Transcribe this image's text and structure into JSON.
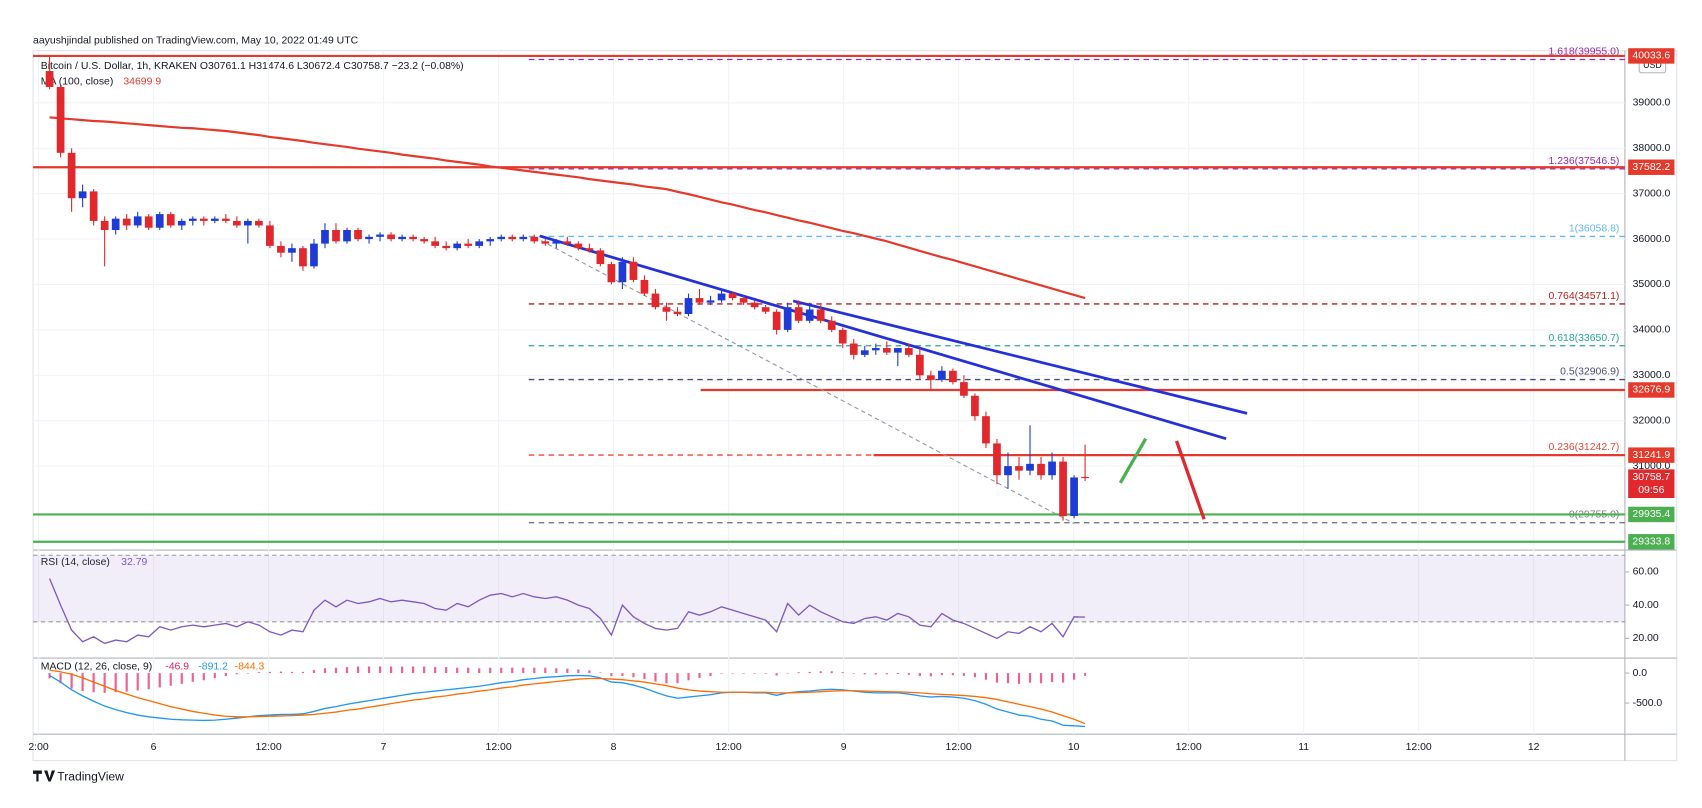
{
  "chart_data": {
    "type": "candlestick",
    "title": "aayushjindal published on TradingView.com, May 10, 2022 01:49 UTC",
    "symbol_line": "Bitcoin / U.S. Dollar, 1h, KRAKEN O30761.1 H31474.6 L30672.4 C30758.7 −23.2 (−0.08%)",
    "currency": "USD",
    "up_color": "#1e3bd6",
    "down_color": "#e0282d",
    "ylim": [
      29200,
      40100
    ],
    "yticks": [
      {
        "value": 31000,
        "label": "31000.0"
      },
      {
        "value": 32000,
        "label": "32000.0"
      },
      {
        "value": 33000,
        "label": "33000.0"
      },
      {
        "value": 34000,
        "label": "34000.0"
      },
      {
        "value": 35000,
        "label": "35000.0"
      },
      {
        "value": 36000,
        "label": "36000.0"
      },
      {
        "value": 37000,
        "label": "37000.0"
      },
      {
        "value": 38000,
        "label": "38000.0"
      },
      {
        "value": 39000,
        "label": "39000.0"
      }
    ],
    "grid": true,
    "time_labels": [
      "2:00",
      "6",
      "12:00",
      "7",
      "12:00",
      "8",
      "12:00",
      "9",
      "12:00",
      "10",
      "12:00",
      "11",
      "12:00",
      "12"
    ],
    "candles": [
      [
        39700,
        40050,
        39300,
        39350
      ],
      [
        39350,
        39400,
        37800,
        37900
      ],
      [
        37900,
        38000,
        36600,
        36900
      ],
      [
        36900,
        37200,
        36700,
        37050
      ],
      [
        37050,
        37100,
        36300,
        36400
      ],
      [
        36400,
        36500,
        35400,
        36200
      ],
      [
        36200,
        36500,
        36100,
        36450
      ],
      [
        36450,
        36550,
        36200,
        36300
      ],
      [
        36300,
        36600,
        36250,
        36500
      ],
      [
        36500,
        36550,
        36200,
        36250
      ],
      [
        36250,
        36600,
        36200,
        36550
      ],
      [
        36550,
        36600,
        36250,
        36300
      ],
      [
        36300,
        36450,
        36200,
        36400
      ],
      [
        36400,
        36500,
        36300,
        36450
      ],
      [
        36450,
        36500,
        36300,
        36400
      ],
      [
        36400,
        36500,
        36350,
        36450
      ],
      [
        36450,
        36550,
        36350,
        36400
      ],
      [
        36400,
        36500,
        36250,
        36300
      ],
      [
        36300,
        36450,
        35900,
        36400
      ],
      [
        36400,
        36450,
        36250,
        36300
      ],
      [
        36300,
        36400,
        35800,
        35850
      ],
      [
        35850,
        35950,
        35600,
        35700
      ],
      [
        35700,
        35900,
        35500,
        35800
      ],
      [
        35800,
        35850,
        35300,
        35400
      ],
      [
        35400,
        36000,
        35350,
        35900
      ],
      [
        35900,
        36350,
        35800,
        36200
      ],
      [
        36200,
        36350,
        35900,
        35950
      ],
      [
        35950,
        36250,
        35900,
        36200
      ],
      [
        36200,
        36250,
        35950,
        36000
      ],
      [
        36000,
        36100,
        35900,
        36050
      ],
      [
        36050,
        36150,
        35950,
        36100
      ],
      [
        36100,
        36150,
        35950,
        36000
      ],
      [
        36000,
        36100,
        35950,
        36050
      ],
      [
        36050,
        36100,
        35950,
        36000
      ],
      [
        36000,
        36050,
        35900,
        35950
      ],
      [
        35950,
        36050,
        35800,
        35850
      ],
      [
        35850,
        35950,
        35750,
        35800
      ],
      [
        35800,
        35950,
        35750,
        35900
      ],
      [
        35900,
        36000,
        35800,
        35850
      ],
      [
        35850,
        36000,
        35800,
        35950
      ],
      [
        35950,
        36050,
        35850,
        36000
      ],
      [
        36000,
        36100,
        35950,
        36050
      ],
      [
        36050,
        36100,
        35950,
        36000
      ],
      [
        36000,
        36100,
        35950,
        36050
      ],
      [
        36050,
        36100,
        35900,
        35950
      ],
      [
        35950,
        36000,
        35850,
        35900
      ],
      [
        35900,
        36000,
        35800,
        35950
      ],
      [
        35950,
        36050,
        35850,
        35900
      ],
      [
        35900,
        35950,
        35750,
        35800
      ],
      [
        35800,
        35900,
        35700,
        35750
      ],
      [
        35750,
        35800,
        35400,
        35450
      ],
      [
        35450,
        35500,
        35000,
        35050
      ],
      [
        35050,
        35600,
        34900,
        35500
      ],
      [
        35500,
        35600,
        35050,
        35100
      ],
      [
        35100,
        35200,
        34750,
        34800
      ],
      [
        34800,
        34900,
        34450,
        34500
      ],
      [
        34500,
        34600,
        34200,
        34400
      ],
      [
        34400,
        34500,
        34300,
        34350
      ],
      [
        34350,
        34800,
        34300,
        34700
      ],
      [
        34700,
        34900,
        34550,
        34600
      ],
      [
        34600,
        34750,
        34550,
        34650
      ],
      [
        34650,
        34900,
        34600,
        34800
      ],
      [
        34800,
        34850,
        34650,
        34700
      ],
      [
        34700,
        34750,
        34550,
        34600
      ],
      [
        34600,
        34650,
        34450,
        34500
      ],
      [
        34500,
        34550,
        34350,
        34400
      ],
      [
        34400,
        34450,
        33900,
        34000
      ],
      [
        34000,
        34600,
        33950,
        34500
      ],
      [
        34500,
        34650,
        34150,
        34200
      ],
      [
        34200,
        34600,
        34150,
        34450
      ],
      [
        34450,
        34550,
        34150,
        34200
      ],
      [
        34200,
        34300,
        33950,
        34000
      ],
      [
        34000,
        34050,
        33600,
        33700
      ],
      [
        33700,
        33800,
        33350,
        33450
      ],
      [
        33450,
        33650,
        33400,
        33550
      ],
      [
        33550,
        33700,
        33450,
        33600
      ],
      [
        33600,
        33750,
        33450,
        33500
      ],
      [
        33500,
        33600,
        33200,
        33600
      ],
      [
        33600,
        33700,
        33400,
        33450
      ],
      [
        33450,
        33600,
        32900,
        33000
      ],
      [
        33000,
        33100,
        32700,
        32900
      ],
      [
        32900,
        33200,
        32850,
        33100
      ],
      [
        33100,
        33150,
        32800,
        32850
      ],
      [
        32850,
        33000,
        32500,
        32550
      ],
      [
        32550,
        32600,
        32000,
        32100
      ],
      [
        32100,
        32200,
        31400,
        31500
      ],
      [
        31500,
        31600,
        30600,
        30800
      ],
      [
        30800,
        31300,
        30500,
        31000
      ],
      [
        31000,
        31200,
        30700,
        30900
      ],
      [
        30900,
        31900,
        30800,
        31050
      ],
      [
        31050,
        31200,
        30700,
        30800
      ],
      [
        30800,
        31300,
        30700,
        31100
      ],
      [
        31100,
        31200,
        29800,
        29900
      ],
      [
        29900,
        30800,
        29850,
        30750
      ],
      [
        30761.1,
        31474.6,
        30672.4,
        30758.7
      ]
    ],
    "countdown": "09:56",
    "ma": {
      "name": "MA (100, close)",
      "color": "#e5392b",
      "values": [
        38680,
        38660,
        38640,
        38620,
        38600,
        38590,
        38570,
        38550,
        38530,
        38510,
        38490,
        38470,
        38450,
        38440,
        38420,
        38400,
        38380,
        38350,
        38320,
        38290,
        38250,
        38220,
        38190,
        38160,
        38120,
        38090,
        38060,
        38030,
        37990,
        37960,
        37930,
        37900,
        37860,
        37830,
        37800,
        37770,
        37730,
        37700,
        37670,
        37640,
        37600,
        37570,
        37540,
        37510,
        37480,
        37450,
        37420,
        37390,
        37360,
        37320,
        37290,
        37260,
        37230,
        37200,
        37160,
        37130,
        37100,
        37040,
        36990,
        36930,
        36870,
        36810,
        36760,
        36700,
        36640,
        36590,
        36530,
        36470,
        36410,
        36360,
        36300,
        36240,
        36180,
        36130,
        36070,
        36010,
        35950,
        35880,
        35810,
        35740,
        35670,
        35600,
        35540,
        35470,
        35400,
        35330,
        35260,
        35190,
        35120,
        35050,
        34980,
        34910,
        34840,
        34770,
        34699.9
      ]
    },
    "hlines": [
      {
        "value": 40033.6,
        "color": "#e5392b"
      },
      {
        "value": 37582.2,
        "color": "#e5392b"
      },
      {
        "value": 32676.9,
        "color": "#e5392b"
      },
      {
        "value": 31241.9,
        "color": "#e5392b"
      },
      {
        "value": 29935.4,
        "color": "#4caf50"
      },
      {
        "value": 29333.8,
        "color": "#4caf50"
      }
    ],
    "fib_levels": [
      {
        "label": "1.618(39955.0)",
        "value": 39955,
        "color": "#9c27b0"
      },
      {
        "label": "1.236(37546.5)",
        "value": 37546.5,
        "color": "#9c27b0"
      },
      {
        "label": "1(36058.8)",
        "value": 36058.8,
        "color": "#64b5f6"
      },
      {
        "label": "0.764(34571.1)",
        "value": 34571.1,
        "color": "#b71c1c"
      },
      {
        "label": "0.618(33650.7)",
        "value": 33650.7,
        "color": "#26a69a"
      },
      {
        "label": "0.5(32906.9)",
        "value": 32906.9,
        "color": "#4a4a7a"
      },
      {
        "label": "0.236(31242.7)",
        "value": 31242.7,
        "color": "#f44336"
      },
      {
        "label": "0(29755.0)",
        "value": 29755,
        "color": "#787b86"
      }
    ],
    "rsi": {
      "name": "RSI (14, close)",
      "color": "#7e57c2",
      "ylim": [
        9.5,
        71.8
      ],
      "band": [
        30,
        70
      ],
      "yticks": [
        {
          "value": 20,
          "label": "20.00"
        },
        {
          "value": 40,
          "label": "40.00"
        },
        {
          "value": 60,
          "label": "60.00"
        }
      ],
      "values": [
        56,
        40,
        25,
        18,
        21,
        17,
        19,
        18,
        22,
        21,
        27,
        25,
        27,
        28,
        27,
        28,
        29,
        27,
        30,
        28,
        24,
        22,
        25,
        24,
        37,
        43,
        39,
        43,
        41,
        42,
        44,
        42,
        43,
        42,
        41,
        38,
        37,
        41,
        39,
        43,
        46,
        47,
        45,
        47,
        45,
        44,
        45,
        43,
        40,
        38,
        32,
        22,
        40,
        33,
        29,
        26,
        25,
        26,
        36,
        34,
        36,
        39,
        37,
        35,
        33,
        31,
        24,
        41,
        34,
        40,
        36,
        33,
        30,
        29,
        32,
        33,
        31,
        35,
        33,
        28,
        27,
        35,
        31,
        29,
        26,
        23,
        20,
        24,
        23,
        27,
        24,
        29,
        21,
        33,
        32.79
      ]
    },
    "macd": {
      "name": "MACD (12, 26, close, 9)",
      "ylim": [
        -982,
        232
      ],
      "yticks": [
        {
          "value": 0,
          "label": "0.0"
        },
        {
          "value": -500,
          "label": "-500.0"
        }
      ],
      "hist_color": "#e91e63",
      "macd_color": "#2196f3",
      "signal_color": "#ff6d00",
      "hist": [
        -90,
        -170,
        -260,
        -300,
        -320,
        -330,
        -320,
        -310,
        -290,
        -270,
        -240,
        -210,
        -180,
        -145,
        -120,
        -85,
        -50,
        -20,
        0,
        15,
        20,
        25,
        20,
        20,
        50,
        80,
        90,
        100,
        110,
        110,
        110,
        110,
        110,
        110,
        110,
        100,
        100,
        90,
        90,
        80,
        90,
        90,
        90,
        90,
        90,
        90,
        80,
        75,
        60,
        45,
        10,
        -50,
        -50,
        -70,
        -100,
        -140,
        -170,
        -170,
        -120,
        -80,
        -50,
        -10,
        0,
        0,
        -10,
        -10,
        -40,
        0,
        15,
        20,
        30,
        30,
        15,
        -5,
        -20,
        -25,
        -20,
        -15,
        -30,
        -50,
        -55,
        -35,
        -35,
        -45,
        -70,
        -110,
        -160,
        -170,
        -180,
        -160,
        -170,
        -150,
        -160,
        -110,
        -46.9
      ],
      "macd": [
        -40,
        -150,
        -280,
        -380,
        -470,
        -550,
        -610,
        -660,
        -700,
        -730,
        -750,
        -770,
        -780,
        -785,
        -790,
        -785,
        -770,
        -750,
        -730,
        -710,
        -700,
        -690,
        -690,
        -680,
        -640,
        -590,
        -560,
        -520,
        -490,
        -460,
        -430,
        -400,
        -370,
        -340,
        -320,
        -300,
        -280,
        -260,
        -240,
        -220,
        -190,
        -160,
        -140,
        -110,
        -90,
        -70,
        -60,
        -45,
        -40,
        -45,
        -80,
        -150,
        -160,
        -200,
        -250,
        -320,
        -380,
        -420,
        -400,
        -380,
        -360,
        -330,
        -320,
        -320,
        -330,
        -330,
        -370,
        -330,
        -310,
        -300,
        -280,
        -270,
        -280,
        -300,
        -320,
        -330,
        -330,
        -330,
        -350,
        -380,
        -400,
        -390,
        -400,
        -420,
        -460,
        -520,
        -600,
        -650,
        -700,
        -720,
        -770,
        -800,
        -870,
        -880,
        -891.2
      ],
      "signal": [
        50,
        20,
        -20,
        -80,
        -150,
        -220,
        -290,
        -350,
        -410,
        -460,
        -510,
        -560,
        -600,
        -640,
        -670,
        -700,
        -720,
        -730,
        -730,
        -725,
        -720,
        -715,
        -710,
        -700,
        -690,
        -670,
        -650,
        -620,
        -600,
        -570,
        -540,
        -510,
        -480,
        -450,
        -430,
        -400,
        -380,
        -350,
        -330,
        -300,
        -280,
        -250,
        -230,
        -200,
        -180,
        -160,
        -140,
        -120,
        -100,
        -90,
        -90,
        -100,
        -110,
        -130,
        -150,
        -180,
        -210,
        -250,
        -280,
        -300,
        -310,
        -320,
        -320,
        -320,
        -320,
        -320,
        -330,
        -330,
        -325,
        -320,
        -310,
        -300,
        -295,
        -295,
        -300,
        -305,
        -310,
        -315,
        -320,
        -330,
        -345,
        -355,
        -365,
        -375,
        -390,
        -410,
        -440,
        -480,
        -520,
        -560,
        -600,
        -650,
        -710,
        -770,
        -844.3
      ]
    },
    "footer": "TradingView"
  }
}
